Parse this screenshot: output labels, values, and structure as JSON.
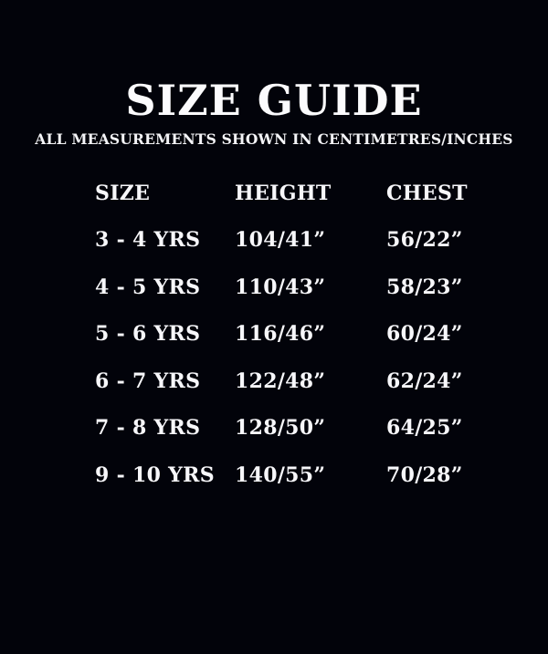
{
  "page": {
    "background_color": "#02030a",
    "text_color": "#fafafc"
  },
  "size_guide": {
    "title": "SIZE GUIDE",
    "subtitle": "ALL MEASUREMENTS SHOWN IN CENTIMETRES/INCHES",
    "columns": [
      "SIZE",
      "HEIGHT",
      "CHEST"
    ],
    "rows": [
      {
        "size": "3 - 4 YRS",
        "height": "104/41”",
        "chest": "56/22”"
      },
      {
        "size": "4 - 5 YRS",
        "height": "110/43”",
        "chest": "58/23”"
      },
      {
        "size": "5 - 6 YRS",
        "height": "116/46”",
        "chest": "60/24”"
      },
      {
        "size": "6 - 7 YRS",
        "height": "122/48”",
        "chest": "62/24”"
      },
      {
        "size": "7 - 8 YRS",
        "height": "128/50”",
        "chest": "64/25”"
      },
      {
        "size": "9 - 10 YRS",
        "height": "140/55”",
        "chest": "70/28”"
      }
    ]
  }
}
